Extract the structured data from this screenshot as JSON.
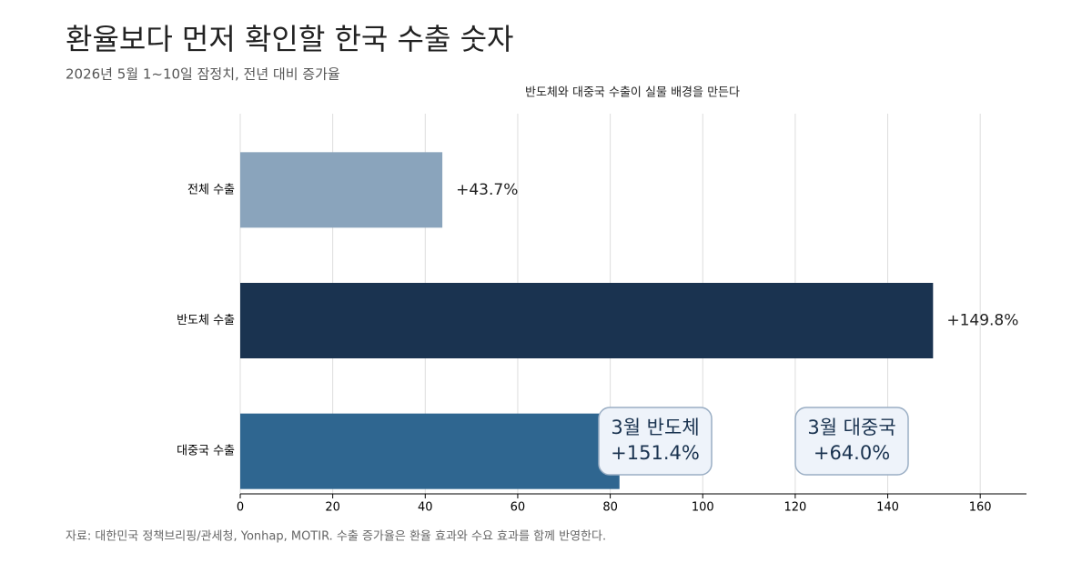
{
  "chart_data": {
    "type": "barh",
    "title": "환율보다 먼저 확인할 한국 수출 숫자",
    "subtitle": "2026년 5월 1~10일 잠정치, 전년 대비 증가율",
    "chart_title": "반도체와 대중국 수출이 실물 배경을 만든다",
    "source": "자료: 대한민국 정책브리핑/관세청, Yonhap, MOTIR. 수출 증가율은 환율 효과와 수요 효과를 함께 반영한다.",
    "categories": [
      "전체 수출",
      "반도체 수출",
      "대중국 수출"
    ],
    "values": [
      43.7,
      149.8,
      82
    ],
    "value_labels": [
      "+43.7%",
      "+149.8%",
      null
    ],
    "colors": [
      "#8aa4bc",
      "#1a3350",
      "#2f6690"
    ],
    "xlim": [
      0,
      170
    ],
    "xticks": [
      0,
      20,
      40,
      60,
      80,
      100,
      120,
      140,
      160
    ],
    "grid": true,
    "annotations": [
      {
        "lines": [
          "3월 반도체",
          "+151.4%"
        ]
      },
      {
        "lines": [
          "3월 대중국",
          "+64.0%"
        ]
      }
    ]
  }
}
